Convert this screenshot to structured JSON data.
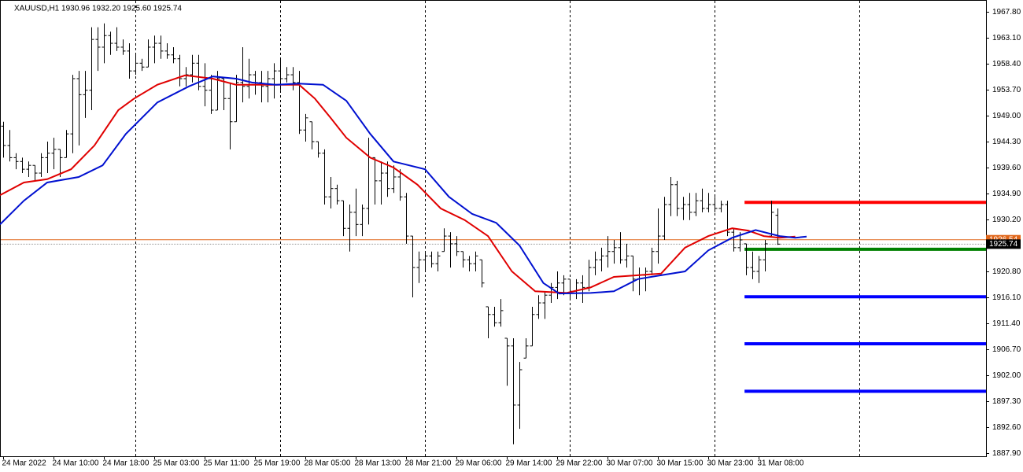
{
  "chart_data": {
    "type": "ohlc",
    "title": "XAUUSD,H1  1930.96 1932.20 1925.60 1925.74",
    "open": [
      1947.1,
      1943.6,
      1941.4,
      1940.7,
      1939.3,
      1940.0,
      1938.6,
      1941.4,
      1942.2,
      1942.9,
      1941.4,
      1945.7,
      1955.7,
      1952.8,
      1953.6,
      1962.8,
      1961.4,
      1963.5,
      1962.1,
      1961.4,
      1960.7,
      1957.1,
      1958.5,
      1957.8,
      1961.4,
      1962.1,
      1960.7,
      1960.0,
      1959.3,
      1955.7,
      1956.4,
      1958.5,
      1954.3,
      1953.6,
      1950.0,
      1955.7,
      1952.1,
      1947.9,
      1955.0,
      1954.3,
      1956.4,
      1955.0,
      1954.3,
      1955.7,
      1957.1,
      1955.7,
      1956.4,
      1955.0,
      1946.4,
      1947.9,
      1944.3,
      1942.2,
      1934.3,
      1935.8,
      1933.6,
      1928.6,
      1931.5,
      1929.3,
      1932.2,
      1941.4,
      1937.2,
      1938.6,
      1935.8,
      1937.9,
      1934.3,
      1927.2,
      1921.5,
      1922.9,
      1923.6,
      1922.2,
      1924.4,
      1927.2,
      1925.8,
      1924.4,
      1922.9,
      1922.2,
      1922.9,
      1914.4,
      1913.0,
      1911.5,
      1908.7,
      1907.3,
      1896.6,
      1905.1,
      1907.3,
      1913.0,
      1915.1,
      1916.5,
      1917.9,
      1918.7,
      1919.4,
      1917.2,
      1918.7,
      1917.9,
      1921.5,
      1922.9,
      1923.6,
      1924.4,
      1925.1,
      1922.9,
      1923.6,
      1919.4,
      1920.1,
      1920.8,
      1924.4,
      1927.2,
      1932.9,
      1936.5,
      1932.2,
      1932.9,
      1931.5,
      1933.6,
      1932.2,
      1932.9,
      1932.2,
      1932.9,
      1927.9,
      1925.1,
      1925.8,
      1921.5,
      1920.8,
      1922.9,
      1927.2,
      1930.96
    ],
    "high": [
      1947.9,
      1946.4,
      1942.2,
      1941.4,
      1940.7,
      1940.0,
      1942.2,
      1944.3,
      1945.0,
      1942.9,
      1946.4,
      1956.4,
      1957.1,
      1957.1,
      1965.0,
      1965.0,
      1965.7,
      1964.2,
      1965.0,
      1962.8,
      1962.1,
      1960.0,
      1959.3,
      1962.8,
      1963.5,
      1963.5,
      1962.1,
      1961.4,
      1960.0,
      1957.8,
      1960.0,
      1960.0,
      1958.5,
      1956.4,
      1957.1,
      1955.7,
      1955.0,
      1956.4,
      1961.4,
      1959.3,
      1957.1,
      1957.1,
      1957.1,
      1958.5,
      1959.3,
      1957.8,
      1957.8,
      1957.1,
      1949.3,
      1947.9,
      1944.3,
      1942.9,
      1937.9,
      1936.5,
      1933.6,
      1932.9,
      1935.8,
      1932.9,
      1945.0,
      1941.4,
      1940.7,
      1940.7,
      1940.0,
      1939.3,
      1935.0,
      1927.2,
      1924.4,
      1924.4,
      1924.4,
      1924.4,
      1928.6,
      1927.9,
      1927.2,
      1924.4,
      1923.6,
      1924.4,
      1922.9,
      1914.4,
      1914.4,
      1915.8,
      1908.7,
      1908.7,
      1904.4,
      1908.7,
      1914.4,
      1916.5,
      1917.2,
      1918.7,
      1920.8,
      1920.1,
      1919.4,
      1919.4,
      1920.1,
      1922.9,
      1924.4,
      1925.1,
      1927.2,
      1926.5,
      1927.9,
      1925.8,
      1923.6,
      1921.5,
      1921.5,
      1925.1,
      1932.2,
      1934.3,
      1937.9,
      1937.2,
      1934.3,
      1935.0,
      1935.0,
      1935.8,
      1935.0,
      1934.3,
      1933.6,
      1933.6,
      1928.6,
      1927.9,
      1925.8,
      1924.4,
      1923.6,
      1926.5,
      1933.6,
      1932.2
    ],
    "low": [
      1941.4,
      1940.7,
      1939.3,
      1938.6,
      1937.9,
      1937.2,
      1937.9,
      1938.6,
      1939.3,
      1937.9,
      1941.4,
      1942.2,
      1943.6,
      1948.6,
      1950.0,
      1957.1,
      1958.5,
      1960.0,
      1960.7,
      1960.0,
      1955.7,
      1956.4,
      1957.1,
      1957.8,
      1958.5,
      1959.3,
      1959.3,
      1958.5,
      1954.3,
      1954.3,
      1955.0,
      1953.6,
      1950.7,
      1949.3,
      1950.0,
      1950.0,
      1942.9,
      1947.9,
      1951.4,
      1952.1,
      1952.8,
      1951.4,
      1951.4,
      1952.1,
      1953.6,
      1955.0,
      1953.6,
      1945.7,
      1944.3,
      1942.9,
      1941.4,
      1932.9,
      1932.2,
      1932.9,
      1927.2,
      1924.4,
      1927.2,
      1927.2,
      1929.3,
      1932.9,
      1932.9,
      1934.3,
      1935.0,
      1933.6,
      1925.8,
      1916.1,
      1918.7,
      1920.8,
      1921.5,
      1920.8,
      1924.4,
      1921.5,
      1923.6,
      1921.5,
      1920.8,
      1920.8,
      1917.9,
      1908.7,
      1910.8,
      1910.8,
      1900.1,
      1889.5,
      1892.3,
      1905.1,
      1907.3,
      1912.2,
      1912.2,
      1915.1,
      1915.8,
      1916.5,
      1915.8,
      1915.8,
      1915.1,
      1917.2,
      1920.1,
      1920.8,
      1921.5,
      1922.2,
      1922.2,
      1921.5,
      1917.2,
      1916.5,
      1917.2,
      1920.1,
      1922.2,
      1926.5,
      1930.8,
      1930.8,
      1930.1,
      1930.1,
      1930.8,
      1931.5,
      1931.5,
      1931.5,
      1931.5,
      1927.2,
      1924.4,
      1924.4,
      1920.1,
      1919.4,
      1918.7,
      1920.8,
      1927.2,
      1925.6
    ],
    "close": [
      1943.6,
      1941.4,
      1940.7,
      1939.3,
      1940.0,
      1938.6,
      1941.4,
      1942.2,
      1942.9,
      1941.4,
      1945.7,
      1955.7,
      1952.8,
      1953.6,
      1962.8,
      1961.4,
      1963.5,
      1962.1,
      1961.4,
      1960.7,
      1957.1,
      1958.5,
      1957.8,
      1961.4,
      1962.1,
      1960.7,
      1960.0,
      1959.3,
      1955.7,
      1956.4,
      1958.5,
      1954.3,
      1953.6,
      1950.0,
      1955.7,
      1952.1,
      1947.9,
      1955.0,
      1954.3,
      1956.4,
      1955.0,
      1954.3,
      1955.7,
      1957.1,
      1955.7,
      1956.4,
      1955.0,
      1946.4,
      1948.6,
      1944.3,
      1942.2,
      1934.3,
      1935.8,
      1933.6,
      1928.6,
      1931.5,
      1929.3,
      1932.2,
      1941.4,
      1937.2,
      1938.6,
      1935.8,
      1937.9,
      1934.3,
      1927.2,
      1921.5,
      1922.9,
      1923.6,
      1922.2,
      1923.6,
      1927.2,
      1925.8,
      1924.4,
      1922.9,
      1922.2,
      1923.6,
      1918.7,
      1913.0,
      1911.5,
      1913.7,
      1907.3,
      1896.6,
      1903.0,
      1907.3,
      1913.0,
      1915.1,
      1916.5,
      1917.9,
      1918.7,
      1919.4,
      1917.2,
      1918.7,
      1917.9,
      1921.5,
      1922.9,
      1923.6,
      1924.4,
      1925.1,
      1922.9,
      1923.6,
      1919.4,
      1920.1,
      1920.8,
      1924.4,
      1927.2,
      1932.9,
      1936.5,
      1932.2,
      1932.9,
      1931.5,
      1933.6,
      1932.2,
      1932.9,
      1932.2,
      1932.9,
      1927.9,
      1925.1,
      1926.5,
      1921.5,
      1920.8,
      1922.9,
      1925.8,
      1931.5,
      1925.74
    ],
    "bar_color": "#000000",
    "series": [
      {
        "color": "#e00000",
        "x": [
          -0.5,
          3.3,
          7,
          10.8,
          14.5,
          18.3,
          20.8,
          24.5,
          28.9,
          33.3,
          37,
          40.8,
          44.5,
          47,
          49.5,
          52,
          54.5,
          58.3,
          62,
          65.8,
          69.5,
          73.3,
          77,
          80.8,
          84.5,
          89.5,
          93.3,
          97,
          100.8,
          104.5,
          108.3,
          112,
          115.8,
          118.3,
          120.8,
          123.3,
          125.8
        ],
        "values": [
          1934.6,
          1936.9,
          1937.5,
          1939.3,
          1943.6,
          1950.0,
          1952.1,
          1954.6,
          1956.3,
          1955.7,
          1954.6,
          1954.6,
          1954.6,
          1954.6,
          1952.1,
          1948.6,
          1945.0,
          1941.4,
          1939.6,
          1936.5,
          1932.2,
          1930.1,
          1927.2,
          1920.8,
          1917.2,
          1916.9,
          1917.9,
          1919.8,
          1920.1,
          1920.4,
          1925.1,
          1927.2,
          1928.6,
          1928.2,
          1927.2,
          1926.9,
          1927.1
        ]
      },
      {
        "color": "#0010d0",
        "x": [
          -0.5,
          3.3,
          7,
          12,
          15.8,
          19.5,
          24.5,
          29.5,
          33.3,
          37,
          39.5,
          43.3,
          47,
          50.8,
          54.5,
          58.3,
          62,
          67,
          70.8,
          74.5,
          78.3,
          82,
          85.8,
          88.3,
          93.3,
          97,
          100.8,
          104.5,
          108.3,
          112,
          115.8,
          119.5,
          123.3,
          125.8,
          127.6
        ],
        "values": [
          1929.3,
          1933.6,
          1936.9,
          1937.9,
          1940.0,
          1945.7,
          1951.4,
          1954.3,
          1956.1,
          1955.7,
          1955.0,
          1954.6,
          1954.8,
          1954.6,
          1951.7,
          1945.7,
          1940.7,
          1939.3,
          1934.3,
          1931.2,
          1929.6,
          1925.5,
          1918.7,
          1916.8,
          1916.9,
          1917.2,
          1919.4,
          1920.1,
          1920.8,
          1924.6,
          1926.9,
          1928.3,
          1927.2,
          1926.9,
          1927.1
        ]
      }
    ],
    "levels": [
      {
        "value": 1933.3,
        "color": "#ff0000"
      },
      {
        "value": 1924.8,
        "color": "#008000"
      },
      {
        "value": 1916.2,
        "color": "#0000ff"
      },
      {
        "value": 1907.7,
        "color": "#0000ff"
      },
      {
        "value": 1899.1,
        "color": "#0000ff"
      }
    ],
    "levels_from_x": 117.75,
    "ask": 1926.54,
    "ask_color": "#e0661a",
    "bid": 1925.74,
    "xlim": [
      -0.5,
      156.1
    ],
    "ylim": [
      1887.33,
      1969.94
    ],
    "xticks": [
      {
        "value": 0,
        "label": "24 Mar 2022"
      },
      {
        "value": 8,
        "label": "24 Mar 10:00"
      },
      {
        "value": 16,
        "label": "24 Mar 18:00"
      },
      {
        "value": 24,
        "label": "25 Mar 03:00"
      },
      {
        "value": 32,
        "label": "25 Mar 11:00"
      },
      {
        "value": 40,
        "label": "25 Mar 19:00"
      },
      {
        "value": 48,
        "label": "28 Mar 05:00"
      },
      {
        "value": 56,
        "label": "28 Mar 13:00"
      },
      {
        "value": 64,
        "label": "28 Mar 21:00"
      },
      {
        "value": 72,
        "label": "29 Mar 06:00"
      },
      {
        "value": 80,
        "label": "29 Mar 14:00"
      },
      {
        "value": 88,
        "label": "29 Mar 22:00"
      },
      {
        "value": 96,
        "label": "30 Mar 07:00"
      },
      {
        "value": 104,
        "label": "30 Mar 15:00"
      },
      {
        "value": 112,
        "label": "30 Mar 23:00"
      },
      {
        "value": 120,
        "label": "31 Mar 08:00"
      }
    ],
    "vgrid": [
      21,
      44,
      67,
      90,
      113,
      136
    ],
    "yticks": [
      {
        "value": 1967.8,
        "label": "1967.80"
      },
      {
        "value": 1963.1,
        "label": "1963.10"
      },
      {
        "value": 1958.4,
        "label": "1958.40"
      },
      {
        "value": 1953.7,
        "label": "1953.70"
      },
      {
        "value": 1949,
        "label": "1949.00"
      },
      {
        "value": 1944.3,
        "label": "1944.30"
      },
      {
        "value": 1939.6,
        "label": "1939.60"
      },
      {
        "value": 1934.9,
        "label": "1934.90"
      },
      {
        "value": 1930.2,
        "label": "1930.20"
      },
      {
        "value": 1920.8,
        "label": "1920.80"
      },
      {
        "value": 1916.1,
        "label": "1916.10"
      },
      {
        "value": 1911.4,
        "label": "1911.40"
      },
      {
        "value": 1906.7,
        "label": "1906.70"
      },
      {
        "value": 1902,
        "label": "1902.00"
      },
      {
        "value": 1897.3,
        "label": "1897.30"
      },
      {
        "value": 1892.6,
        "label": "1892.60"
      },
      {
        "value": 1887.9,
        "label": "1887.90"
      }
    ]
  }
}
